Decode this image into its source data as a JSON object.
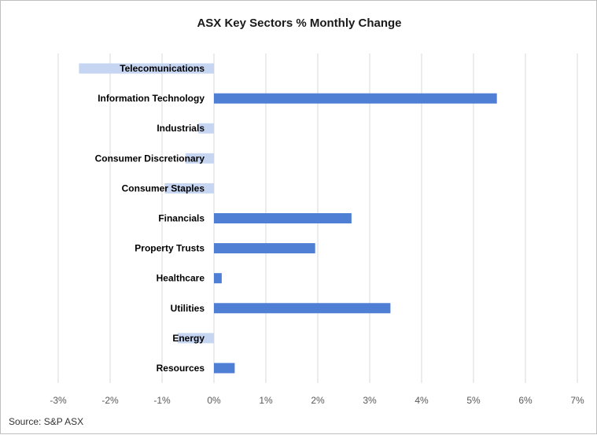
{
  "chart_data": {
    "type": "bar",
    "orientation": "horizontal",
    "title": "ASX Key Sectors % Monthly Change",
    "source": "Source: S&P ASX",
    "categories": [
      "Telecomunications",
      "Information Technology",
      "Industrials",
      "Consumer Discretionary",
      "Consumer Staples",
      "Financials",
      "Property Trusts",
      "Healthcare",
      "Utilities",
      "Energy",
      "Resources"
    ],
    "values": [
      -2.6,
      5.45,
      -0.3,
      -0.55,
      -0.95,
      2.65,
      1.95,
      0.15,
      3.4,
      -0.7,
      0.4
    ],
    "xlim": [
      -3,
      7
    ],
    "x_ticks": [
      -3,
      -2,
      -1,
      0,
      1,
      2,
      3,
      4,
      5,
      6,
      7
    ],
    "x_tick_labels": [
      "-3%",
      "-2%",
      "-1%",
      "0%",
      "1%",
      "2%",
      "3%",
      "4%",
      "5%",
      "6%",
      "7%"
    ],
    "grid": "vertical",
    "colors": {
      "positive": "#4f7fd4",
      "negative": "#c5d5f2",
      "grid": "#d9d9d9"
    }
  }
}
